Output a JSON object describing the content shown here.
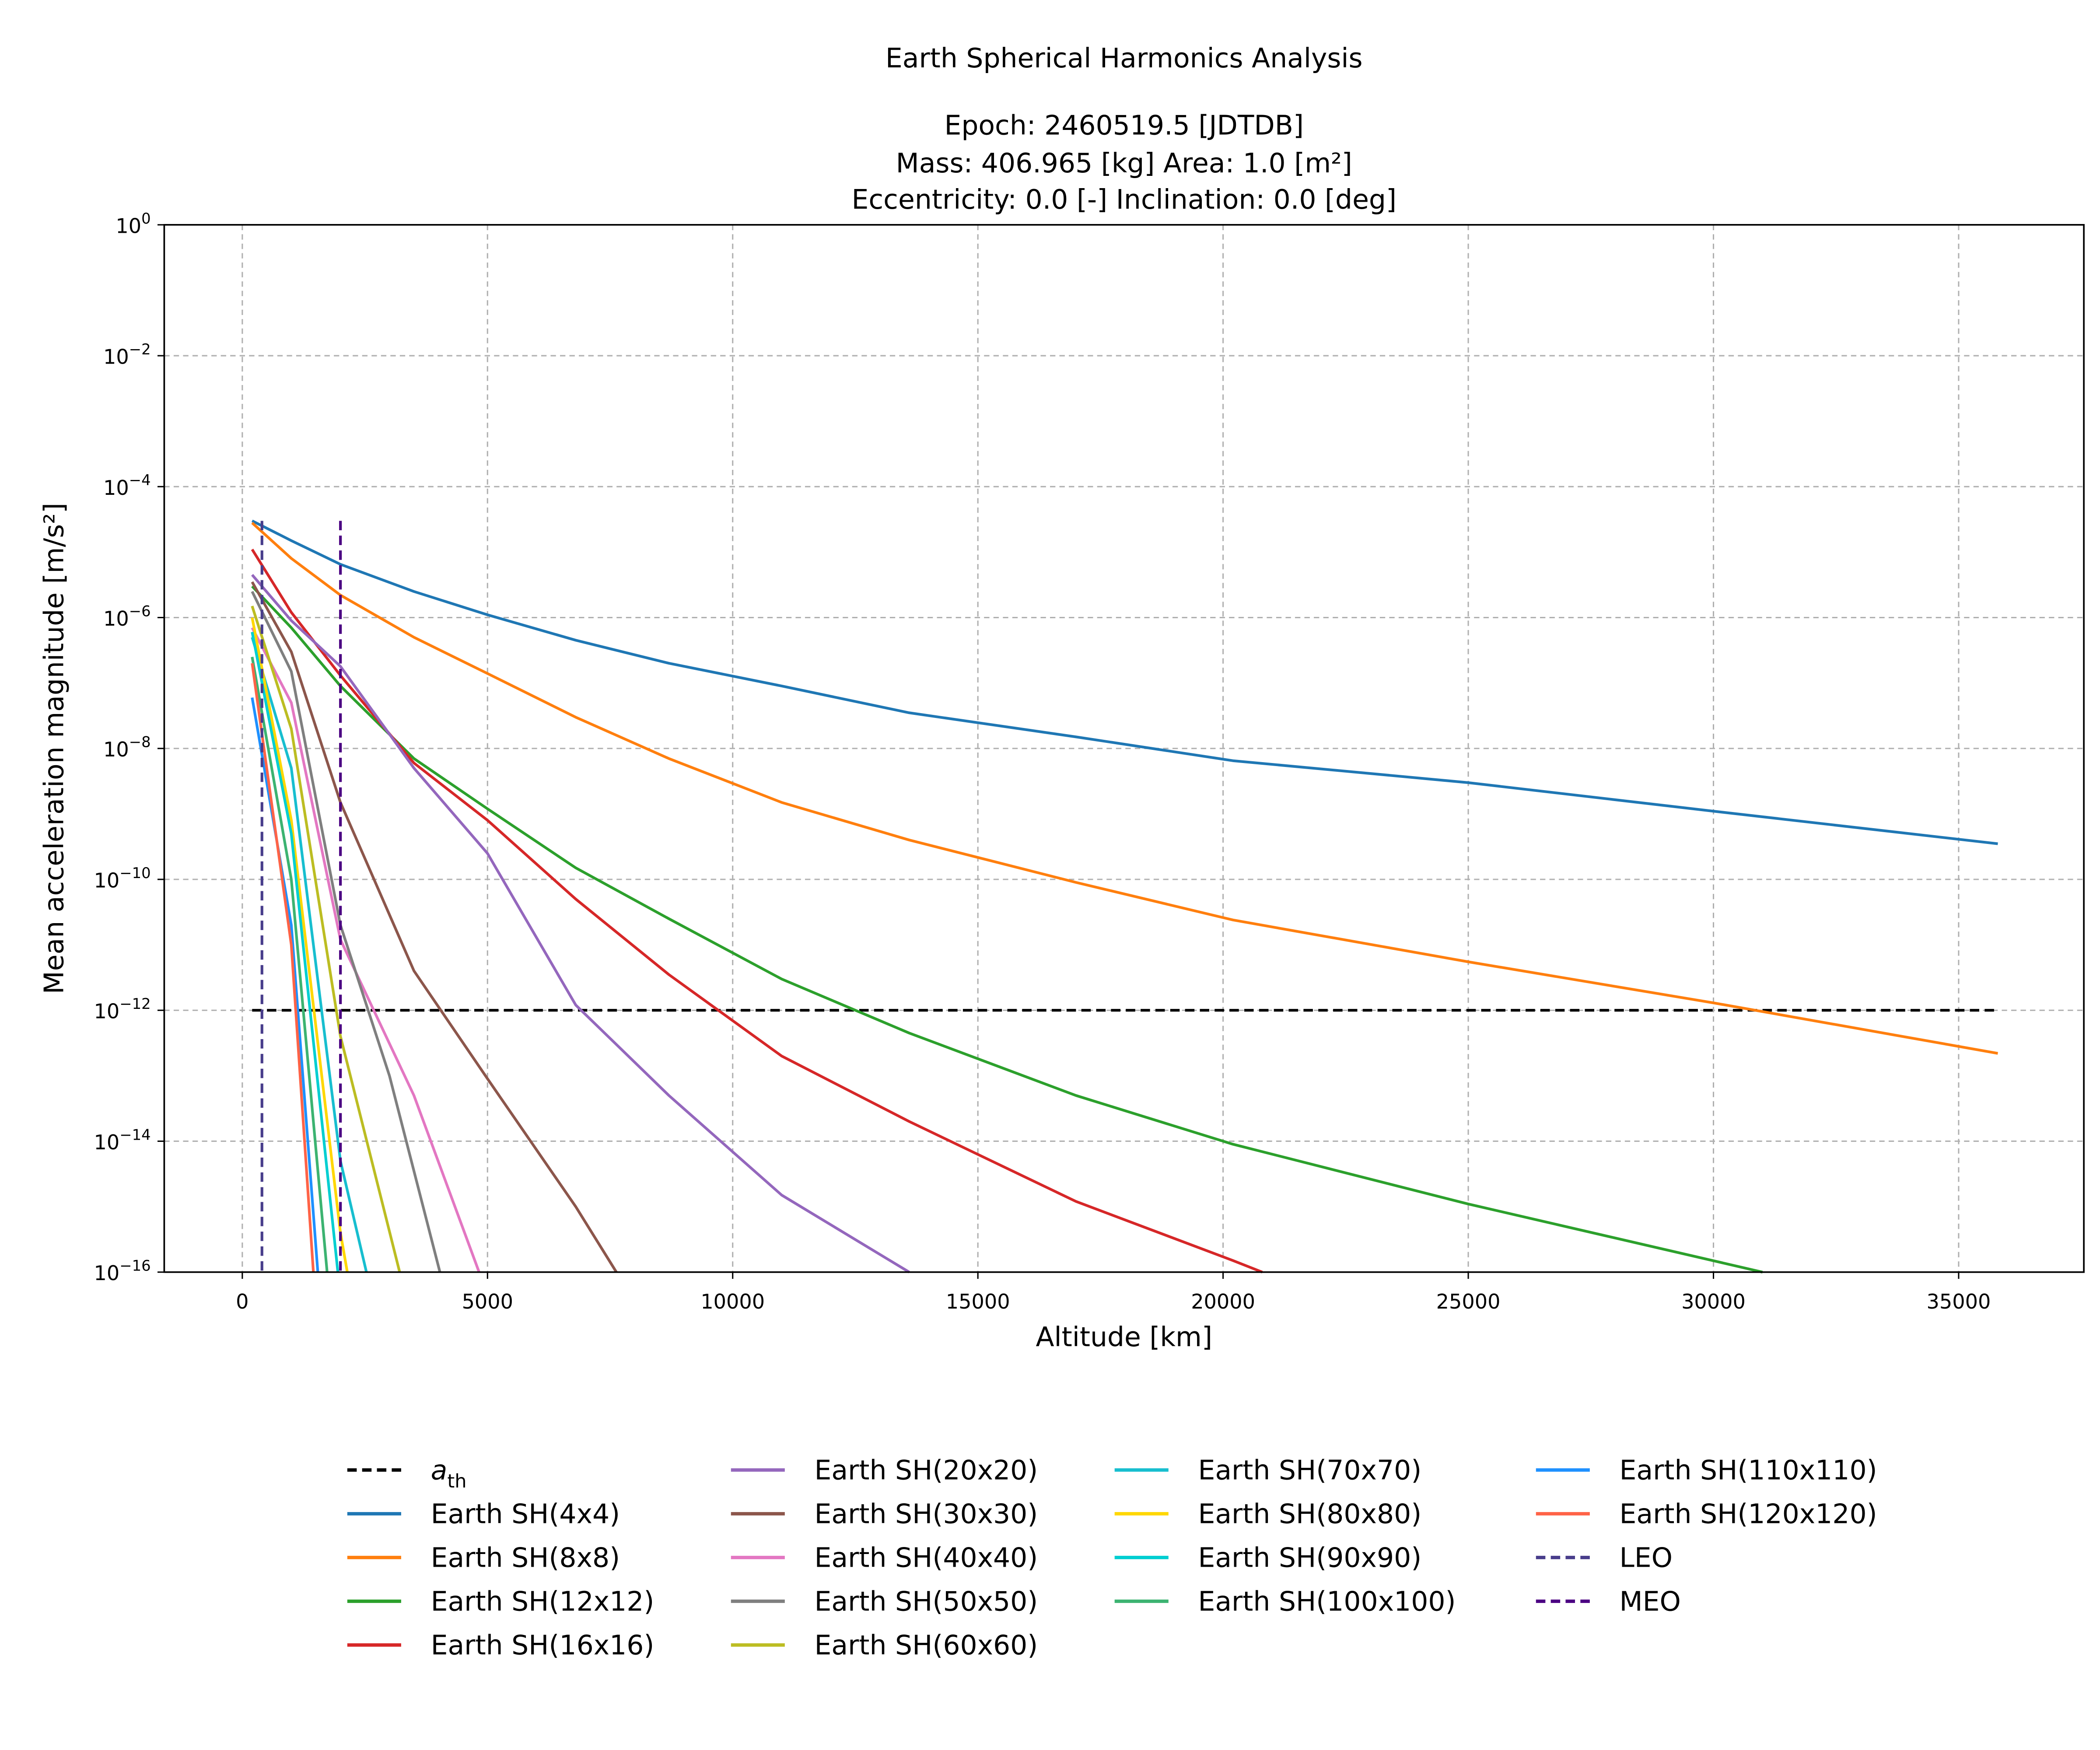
{
  "figure": {
    "title": "Earth Spherical Harmonics Analysis",
    "subtitle_lines": [
      "Epoch: 2460519.5 [JDTDB]",
      "Mass: 406.965 [kg]    Area: 1.0 [m²]",
      "Eccentricity: 0.0 [-]    Inclination: 0.0 [deg]"
    ]
  },
  "chart_data": {
    "type": "line",
    "title": "Earth Spherical Harmonics Analysis",
    "subtitle": "Epoch: 2460519.5 [JDTDB] | Mass: 406.965 [kg]  Area: 1.0 [m^2] | Eccentricity: 0.0 [-]  Inclination: 0.0 [deg]",
    "xlabel": "Altitude [km]",
    "ylabel": "Mean acceleration magnitude [m/s^2]",
    "xscale": "linear",
    "yscale": "log",
    "xlim": [
      -1600,
      37600
    ],
    "ylim": [
      1e-16,
      1
    ],
    "x_ticks": [
      0,
      5000,
      10000,
      15000,
      20000,
      25000,
      30000,
      35000
    ],
    "x_tick_labels": [
      "0",
      "5000",
      "10000",
      "15000",
      "20000",
      "25000",
      "30000",
      "35000"
    ],
    "y_ticks_exp": [
      0,
      -2,
      -4,
      -6,
      -8,
      -10,
      -12,
      -14,
      -16
    ],
    "y_tick_labels": [
      "10^0",
      "10^-2",
      "10^-4",
      "10^-6",
      "10^-8",
      "10^-10",
      "10^-12",
      "10^-14",
      "10^-16"
    ],
    "grid": true,
    "legend_position": "below plot, 4 columns",
    "series": [
      {
        "name": "a_th",
        "color": "#000000",
        "dash": "dashed",
        "x": [
          200,
          35800
        ],
        "y": [
          1e-12,
          1e-12
        ]
      },
      {
        "name": "Earth SH(4x4)",
        "color": "#1f77b4",
        "dash": "solid",
        "x": [
          200,
          1000,
          2000,
          3500,
          5000,
          6800,
          8700,
          11000,
          13600,
          17000,
          20200,
          25000,
          30000,
          35800
        ],
        "y": [
          3e-05,
          1.5e-05,
          6.5e-06,
          2.5e-06,
          1.1e-06,
          4.5e-07,
          2e-07,
          9e-08,
          3.5e-08,
          1.5e-08,
          6.5e-09,
          3e-09,
          1.1e-09,
          3.5e-10
        ]
      },
      {
        "name": "Earth SH(8x8)",
        "color": "#ff7f0e",
        "dash": "solid",
        "x": [
          200,
          1000,
          2000,
          3500,
          5000,
          6800,
          8700,
          11000,
          13600,
          17000,
          20200,
          25000,
          30000,
          35800
        ],
        "y": [
          2.8e-05,
          8e-06,
          2.2e-06,
          5e-07,
          1.4e-07,
          3e-08,
          7e-09,
          1.5e-09,
          4e-10,
          9e-11,
          2.4e-11,
          5.5e-12,
          1.3e-12,
          2.2e-13
        ]
      },
      {
        "name": "Earth SH(12x12)",
        "color": "#2ca02c",
        "dash": "solid",
        "x": [
          200,
          1000,
          2000,
          3500,
          5000,
          6800,
          8700,
          11000,
          13600,
          17000,
          20200,
          25000,
          31000
        ],
        "y": [
          3e-06,
          7e-07,
          9e-08,
          7e-09,
          1.2e-09,
          1.5e-10,
          2.5e-11,
          3e-12,
          4.5e-13,
          5e-14,
          9e-15,
          1.1e-15,
          1e-16
        ]
      },
      {
        "name": "Earth SH(16x16)",
        "color": "#d62728",
        "dash": "solid",
        "x": [
          200,
          1000,
          2000,
          3500,
          5000,
          6800,
          8700,
          11000,
          13600,
          17000,
          20200,
          20800
        ],
        "y": [
          1.1e-05,
          1.2e-06,
          1.3e-07,
          6e-09,
          8e-10,
          5e-11,
          3.5e-12,
          2e-13,
          2e-14,
          1.2e-15,
          1.5e-16,
          1e-16
        ]
      },
      {
        "name": "Earth SH(20x20)",
        "color": "#9467bd",
        "dash": "solid",
        "x": [
          200,
          1000,
          2000,
          3500,
          5000,
          6800,
          8700,
          11000,
          13600
        ],
        "y": [
          4.5e-06,
          9e-07,
          1.8e-07,
          5e-09,
          2.5e-10,
          1.2e-12,
          5e-14,
          1.5e-15,
          1e-16
        ]
      },
      {
        "name": "Earth SH(30x30)",
        "color": "#8c564b",
        "dash": "solid",
        "x": [
          200,
          1000,
          2000,
          3500,
          5000,
          6800,
          7630
        ],
        "y": [
          3.5e-06,
          3e-07,
          1.5e-09,
          4e-12,
          9e-14,
          1e-15,
          1e-16
        ]
      },
      {
        "name": "Earth SH(40x40)",
        "color": "#e377c2",
        "dash": "solid",
        "x": [
          200,
          1000,
          2000,
          3500,
          4830
        ],
        "y": [
          7e-07,
          5e-08,
          1.2e-11,
          5e-14,
          1e-16
        ]
      },
      {
        "name": "Earth SH(50x50)",
        "color": "#7f7f7f",
        "dash": "solid",
        "x": [
          200,
          1000,
          2000,
          3000,
          4030
        ],
        "y": [
          2.5e-06,
          1.5e-07,
          2e-11,
          1e-13,
          1e-16
        ]
      },
      {
        "name": "Earth SH(60x60)",
        "color": "#bcbd22",
        "dash": "solid",
        "x": [
          200,
          1000,
          2000,
          3210
        ],
        "y": [
          1.5e-06,
          2e-08,
          4e-13,
          1e-16
        ]
      },
      {
        "name": "Earth SH(70x70)",
        "color": "#17becf",
        "dash": "solid",
        "x": [
          200,
          1000,
          2000,
          2530
        ],
        "y": [
          5e-07,
          5e-09,
          5e-15,
          1e-16
        ]
      },
      {
        "name": "Earth SH(80x80)",
        "color": "#ffd700",
        "dash": "solid",
        "x": [
          200,
          1000,
          2000,
          2140
        ],
        "y": [
          1e-06,
          8e-10,
          4e-16,
          1e-16
        ]
      },
      {
        "name": "Earth SH(90x90)",
        "color": "#00ced1",
        "dash": "solid",
        "x": [
          200,
          1000,
          1950
        ],
        "y": [
          6e-07,
          5e-10,
          1e-16
        ]
      },
      {
        "name": "Earth SH(100x100)",
        "color": "#3cb371",
        "dash": "solid",
        "x": [
          200,
          1000,
          1730
        ],
        "y": [
          2.5e-07,
          1e-10,
          1e-16
        ]
      },
      {
        "name": "Earth SH(110x110)",
        "color": "#1e90ff",
        "dash": "solid",
        "x": [
          200,
          1000,
          1540
        ],
        "y": [
          6e-08,
          2e-11,
          1e-16
        ]
      },
      {
        "name": "Earth SH(120x120)",
        "color": "#ff6347",
        "dash": "solid",
        "x": [
          200,
          1000,
          1450
        ],
        "y": [
          2e-07,
          1e-11,
          1e-16
        ]
      },
      {
        "name": "LEO",
        "color": "#483d8b",
        "dash": "dashed",
        "x": [
          400,
          400
        ],
        "y": [
          3e-05,
          1e-16
        ]
      },
      {
        "name": "MEO",
        "color": "#4b0082",
        "dash": "dashed",
        "x": [
          2000,
          2000
        ],
        "y": [
          3e-05,
          1e-16
        ]
      }
    ]
  },
  "axes": {
    "xlabel": "Altitude [km]",
    "ylabel": "Mean acceleration magnitude [m/s²]"
  },
  "legend": {
    "items": [
      {
        "label": "a_th",
        "display": "a",
        "sub": "th"
      },
      {
        "label": "Earth SH(4x4)"
      },
      {
        "label": "Earth SH(8x8)"
      },
      {
        "label": "Earth SH(12x12)"
      },
      {
        "label": "Earth SH(16x16)"
      },
      {
        "label": "Earth SH(20x20)"
      },
      {
        "label": "Earth SH(30x30)"
      },
      {
        "label": "Earth SH(40x40)"
      },
      {
        "label": "Earth SH(50x50)"
      },
      {
        "label": "Earth SH(60x60)"
      },
      {
        "label": "Earth SH(70x70)"
      },
      {
        "label": "Earth SH(80x80)"
      },
      {
        "label": "Earth SH(90x90)"
      },
      {
        "label": "Earth SH(100x100)"
      },
      {
        "label": "Earth SH(110x110)"
      },
      {
        "label": "Earth SH(120x120)"
      },
      {
        "label": "LEO"
      },
      {
        "label": "MEO"
      }
    ]
  }
}
